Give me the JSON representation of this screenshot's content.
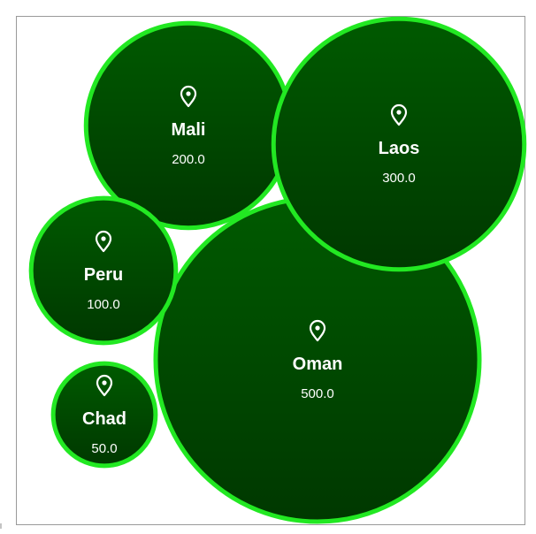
{
  "chart_data": {
    "type": "packed-bubble",
    "title": "",
    "colors": {
      "bubble_fill_top": "#005a00",
      "bubble_fill_bottom": "#003800",
      "bubble_stroke": "#22e822",
      "text": "#ffffff",
      "frame": "#9a9a9a"
    },
    "bubbles": [
      {
        "name": "Mali",
        "value": 200.0,
        "value_label": "200.0",
        "icon": "map-pin-icon"
      },
      {
        "name": "Laos",
        "value": 300.0,
        "value_label": "300.0",
        "icon": "map-pin-icon"
      },
      {
        "name": "Peru",
        "value": 100.0,
        "value_label": "100.0",
        "icon": "map-pin-icon"
      },
      {
        "name": "Oman",
        "value": 500.0,
        "value_label": "500.0",
        "icon": "map-pin-icon"
      },
      {
        "name": "Chad",
        "value": 50.0,
        "value_label": "50.0",
        "icon": "map-pin-icon"
      }
    ]
  }
}
